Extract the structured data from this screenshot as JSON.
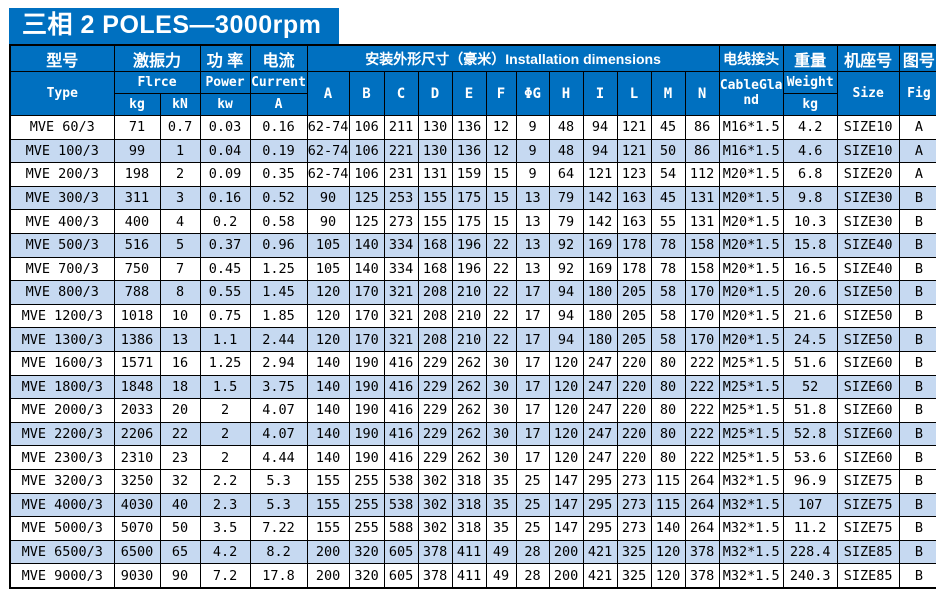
{
  "page": {
    "title": "三相 2 POLES—3000rpm"
  },
  "colors": {
    "header_bg": "#0070c0",
    "header_text": "#ffffff",
    "row_shaded": "#c6d9f1",
    "row_plain": "#ffffff",
    "border": "#000000"
  },
  "table": {
    "model": {
      "zh": "型号",
      "en": "Type"
    },
    "force": {
      "zh": "激振力",
      "en": "Flrce",
      "unit_kg": "kg",
      "unit_kn": "kN"
    },
    "power": {
      "zh": "功 率",
      "en": "Power",
      "unit": "kw"
    },
    "current": {
      "zh": "电流",
      "en": "Current",
      "unit": "A"
    },
    "dims": {
      "zh_en": "安装外形尺寸（豪米）Installation dimensions",
      "letters": [
        "A",
        "B",
        "C",
        "D",
        "E",
        "F",
        "ΦG",
        "H",
        "I",
        "L",
        "M",
        "N"
      ]
    },
    "cable": {
      "zh": "电线接头",
      "en": "CableGland"
    },
    "weight": {
      "zh": "重量",
      "en": "Weight",
      "unit": "kg"
    },
    "size": {
      "zh": "机座号",
      "en": "Size"
    },
    "fig": {
      "zh": "图号",
      "en": "Fig"
    },
    "rows": [
      {
        "type": "MVE 60/3",
        "force_kg": "71",
        "force_kn": "0.7",
        "power_kw": "0.03",
        "current_a": "0.16",
        "dims": [
          "62-74",
          "106",
          "211",
          "130",
          "136",
          "12",
          "9",
          "48",
          "94",
          "121",
          "45",
          "86"
        ],
        "cable_gland": "M16*1.5",
        "weight_kg": "4.2",
        "size": "SIZE10",
        "fig": "A",
        "shaded": false
      },
      {
        "type": "MVE 100/3",
        "force_kg": "99",
        "force_kn": "1",
        "power_kw": "0.04",
        "current_a": "0.19",
        "dims": [
          "62-74",
          "106",
          "221",
          "130",
          "136",
          "12",
          "9",
          "48",
          "94",
          "121",
          "50",
          "86"
        ],
        "cable_gland": "M16*1.5",
        "weight_kg": "4.6",
        "size": "SIZE10",
        "fig": "A",
        "shaded": true
      },
      {
        "type": "MVE 200/3",
        "force_kg": "198",
        "force_kn": "2",
        "power_kw": "0.09",
        "current_a": "0.35",
        "dims": [
          "62-74",
          "106",
          "231",
          "131",
          "159",
          "15",
          "9",
          "64",
          "121",
          "123",
          "54",
          "112"
        ],
        "cable_gland": "M20*1.5",
        "weight_kg": "6.8",
        "size": "SIZE20",
        "fig": "A",
        "shaded": false
      },
      {
        "type": "MVE 300/3",
        "force_kg": "311",
        "force_kn": "3",
        "power_kw": "0.16",
        "current_a": "0.52",
        "dims": [
          "90",
          "125",
          "253",
          "155",
          "175",
          "15",
          "13",
          "79",
          "142",
          "163",
          "45",
          "131"
        ],
        "cable_gland": "M20*1.5",
        "weight_kg": "9.8",
        "size": "SIZE30",
        "fig": "B",
        "shaded": true
      },
      {
        "type": "MVE 400/3",
        "force_kg": "400",
        "force_kn": "4",
        "power_kw": "0.2",
        "current_a": "0.58",
        "dims": [
          "90",
          "125",
          "273",
          "155",
          "175",
          "15",
          "13",
          "79",
          "142",
          "163",
          "55",
          "131"
        ],
        "cable_gland": "M20*1.5",
        "weight_kg": "10.3",
        "size": "SIZE30",
        "fig": "B",
        "shaded": false
      },
      {
        "type": "MVE 500/3",
        "force_kg": "516",
        "force_kn": "5",
        "power_kw": "0.37",
        "current_a": "0.96",
        "dims": [
          "105",
          "140",
          "334",
          "168",
          "196",
          "22",
          "13",
          "92",
          "169",
          "178",
          "78",
          "158"
        ],
        "cable_gland": "M20*1.5",
        "weight_kg": "15.8",
        "size": "SIZE40",
        "fig": "B",
        "shaded": true
      },
      {
        "type": "MVE 700/3",
        "force_kg": "750",
        "force_kn": "7",
        "power_kw": "0.45",
        "current_a": "1.25",
        "dims": [
          "105",
          "140",
          "334",
          "168",
          "196",
          "22",
          "13",
          "92",
          "169",
          "178",
          "78",
          "158"
        ],
        "cable_gland": "M20*1.5",
        "weight_kg": "16.5",
        "size": "SIZE40",
        "fig": "B",
        "shaded": false
      },
      {
        "type": "MVE 800/3",
        "force_kg": "788",
        "force_kn": "8",
        "power_kw": "0.55",
        "current_a": "1.45",
        "dims": [
          "120",
          "170",
          "321",
          "208",
          "210",
          "22",
          "17",
          "94",
          "180",
          "205",
          "58",
          "170"
        ],
        "cable_gland": "M20*1.5",
        "weight_kg": "20.6",
        "size": "SIZE50",
        "fig": "B",
        "shaded": true
      },
      {
        "type": "MVE 1200/3",
        "force_kg": "1018",
        "force_kn": "10",
        "power_kw": "0.75",
        "current_a": "1.85",
        "dims": [
          "120",
          "170",
          "321",
          "208",
          "210",
          "22",
          "17",
          "94",
          "180",
          "205",
          "58",
          "170"
        ],
        "cable_gland": "M20*1.5",
        "weight_kg": "21.6",
        "size": "SIZE50",
        "fig": "B",
        "shaded": false
      },
      {
        "type": "MVE 1300/3",
        "force_kg": "1386",
        "force_kn": "13",
        "power_kw": "1.1",
        "current_a": "2.44",
        "dims": [
          "120",
          "170",
          "321",
          "208",
          "210",
          "22",
          "17",
          "94",
          "180",
          "205",
          "58",
          "170"
        ],
        "cable_gland": "M20*1.5",
        "weight_kg": "24.5",
        "size": "SIZE50",
        "fig": "B",
        "shaded": true
      },
      {
        "type": "MVE 1600/3",
        "force_kg": "1571",
        "force_kn": "16",
        "power_kw": "1.25",
        "current_a": "2.94",
        "dims": [
          "140",
          "190",
          "416",
          "229",
          "262",
          "30",
          "17",
          "120",
          "247",
          "220",
          "80",
          "222"
        ],
        "cable_gland": "M25*1.5",
        "weight_kg": "51.6",
        "size": "SIZE60",
        "fig": "B",
        "shaded": false
      },
      {
        "type": "MVE 1800/3",
        "force_kg": "1848",
        "force_kn": "18",
        "power_kw": "1.5",
        "current_a": "3.75",
        "dims": [
          "140",
          "190",
          "416",
          "229",
          "262",
          "30",
          "17",
          "120",
          "247",
          "220",
          "80",
          "222"
        ],
        "cable_gland": "M25*1.5",
        "weight_kg": "52",
        "size": "SIZE60",
        "fig": "B",
        "shaded": true
      },
      {
        "type": "MVE 2000/3",
        "force_kg": "2033",
        "force_kn": "20",
        "power_kw": "2",
        "current_a": "4.07",
        "dims": [
          "140",
          "190",
          "416",
          "229",
          "262",
          "30",
          "17",
          "120",
          "247",
          "220",
          "80",
          "222"
        ],
        "cable_gland": "M25*1.5",
        "weight_kg": "51.8",
        "size": "SIZE60",
        "fig": "B",
        "shaded": false
      },
      {
        "type": "MVE 2200/3",
        "force_kg": "2206",
        "force_kn": "22",
        "power_kw": "2",
        "current_a": "4.07",
        "dims": [
          "140",
          "190",
          "416",
          "229",
          "262",
          "30",
          "17",
          "120",
          "247",
          "220",
          "80",
          "222"
        ],
        "cable_gland": "M25*1.5",
        "weight_kg": "52.8",
        "size": "SIZE60",
        "fig": "B",
        "shaded": true
      },
      {
        "type": "MVE 2300/3",
        "force_kg": "2310",
        "force_kn": "23",
        "power_kw": "2",
        "current_a": "4.44",
        "dims": [
          "140",
          "190",
          "416",
          "229",
          "262",
          "30",
          "17",
          "120",
          "247",
          "220",
          "80",
          "222"
        ],
        "cable_gland": "M25*1.5",
        "weight_kg": "53.6",
        "size": "SIZE60",
        "fig": "B",
        "shaded": false
      },
      {
        "type": "MVE 3200/3",
        "force_kg": "3250",
        "force_kn": "32",
        "power_kw": "2.2",
        "current_a": "5.3",
        "dims": [
          "155",
          "255",
          "538",
          "302",
          "318",
          "35",
          "25",
          "147",
          "295",
          "273",
          "115",
          "264"
        ],
        "cable_gland": "M32*1.5",
        "weight_kg": "96.9",
        "size": "SIZE75",
        "fig": "B",
        "shaded": false
      },
      {
        "type": "MVE 4000/3",
        "force_kg": "4030",
        "force_kn": "40",
        "power_kw": "2.3",
        "current_a": "5.3",
        "dims": [
          "155",
          "255",
          "538",
          "302",
          "318",
          "35",
          "25",
          "147",
          "295",
          "273",
          "115",
          "264"
        ],
        "cable_gland": "M32*1.5",
        "weight_kg": "107",
        "size": "SIZE75",
        "fig": "B",
        "shaded": true
      },
      {
        "type": "MVE 5000/3",
        "force_kg": "5070",
        "force_kn": "50",
        "power_kw": "3.5",
        "current_a": "7.22",
        "dims": [
          "155",
          "255",
          "588",
          "302",
          "318",
          "35",
          "25",
          "147",
          "295",
          "273",
          "140",
          "264"
        ],
        "cable_gland": "M32*1.5",
        "weight_kg": "11.2",
        "size": "SIZE75",
        "fig": "B",
        "shaded": false
      },
      {
        "type": "MVE 6500/3",
        "force_kg": "6500",
        "force_kn": "65",
        "power_kw": "4.2",
        "current_a": "8.2",
        "dims": [
          "200",
          "320",
          "605",
          "378",
          "411",
          "49",
          "28",
          "200",
          "421",
          "325",
          "120",
          "378"
        ],
        "cable_gland": "M32*1.5",
        "weight_kg": "228.4",
        "size": "SIZE85",
        "fig": "B",
        "shaded": true
      },
      {
        "type": "MVE 9000/3",
        "force_kg": "9030",
        "force_kn": "90",
        "power_kw": "7.2",
        "current_a": "17.8",
        "dims": [
          "200",
          "320",
          "605",
          "378",
          "411",
          "49",
          "28",
          "200",
          "421",
          "325",
          "120",
          "378"
        ],
        "cable_gland": "M32*1.5",
        "weight_kg": "240.3",
        "size": "SIZE85",
        "fig": "B",
        "shaded": false
      }
    ]
  }
}
